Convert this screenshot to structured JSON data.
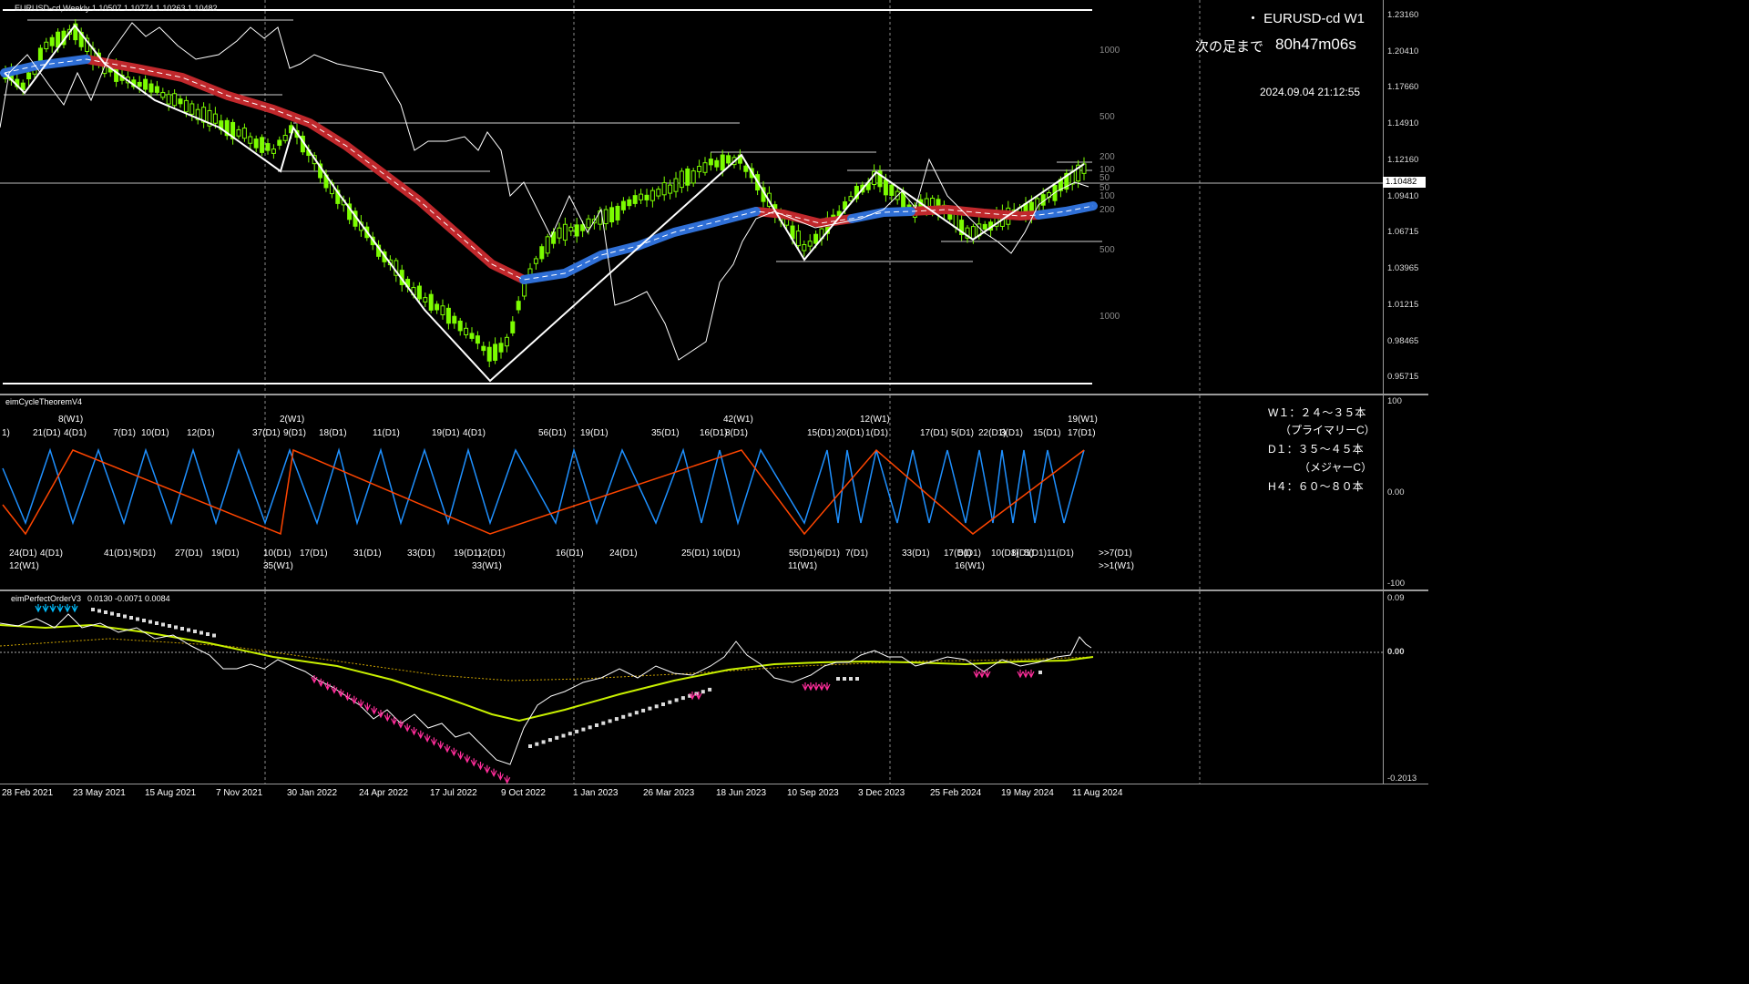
{
  "chart_header": {
    "symbol_line": "EURUSD-cd,Weekly  1.10507 1.10774 1.10263 1.10482"
  },
  "info_panel": {
    "symbol": "・ EURUSD-cd W1",
    "countdown_label": "次の足まで",
    "countdown_value": "80h47m06s",
    "datetime": "2024.09.04 21:12:55"
  },
  "price_axis": {
    "ticks": [
      "1.23160",
      "1.20410",
      "1.17660",
      "1.14910",
      "1.12160",
      "1.09410",
      "1.06715",
      "1.03965",
      "1.01215",
      "0.98465",
      "0.95715"
    ],
    "current_price": "1.10482"
  },
  "pip_ladder": [
    "1000",
    "500",
    "200",
    "100",
    "50",
    "50",
    "100",
    "200",
    "500",
    "1000"
  ],
  "cycle_pane": {
    "title": "eimCycleTheoremV4",
    "axis_ticks": [
      "100",
      "0.00",
      "-100"
    ],
    "legend": [
      "W１：２４～３５本",
      "（プライマリーC）",
      "D１：３５～４５本",
      "（メジャーC）",
      "H４：６０～８０本"
    ],
    "top_labels": [
      "1)",
      "21(D1)",
      "8(W1)",
      "4(D1)",
      "7(D1)",
      "10(D1)",
      "12(D1)",
      "37(D1)",
      "2(W1)",
      "9(D1)",
      "18(D1)",
      "11(D1)",
      "19(D1)",
      "4(D1)",
      "56(D1)",
      "19(D1)",
      "35(D1)",
      "16(D1)",
      "42(W1)",
      "8(D1)",
      "15(D1)",
      "20(D1)",
      "12(W1)",
      "1(D1)",
      "17(D1)",
      "5(D1)",
      "22(D1)",
      "3(D1)",
      "15(D1)",
      "19(W1)",
      "17(D1)"
    ],
    "bottom_labels": [
      "24(D1)",
      "4(D1)",
      "12(W1)",
      "41(D1)",
      "5(D1)",
      "27(D1)",
      "19(D1)",
      "10(D1)",
      "35(W1)",
      "17(D1)",
      "31(D1)",
      "33(D1)",
      "19(D1)",
      "12(D1)",
      "33(W1)",
      "16(D1)",
      "24(D1)",
      "25(D1)",
      "10(D1)",
      "55(D1)",
      "11(W1)",
      "6(D1)",
      "7(D1)",
      "33(D1)",
      "17(D1)",
      "5(D1)",
      "16(W1)",
      "10(D1)",
      "8(D1)",
      "5(D1)",
      "11(D1)",
      ">>7(D1)",
      ">>1(W1)"
    ]
  },
  "perfect_order_pane": {
    "title": "eimPerfectOrderV3",
    "values": "0.0130 -0.0071 0.0084",
    "axis_ticks": [
      "0.09",
      "0.00",
      "-0.2013"
    ]
  },
  "date_axis": [
    "28 Feb 2021",
    "23 May 2021",
    "15 Aug 2021",
    "7 Nov 2021",
    "30 Jan 2022",
    "24 Apr 2022",
    "17 Jul 2022",
    "9 Oct 2022",
    "1 Jan 2023",
    "26 Mar 2023",
    "18 Jun 2023",
    "10 Sep 2023",
    "3 Dec 2023",
    "25 Feb 2024",
    "19 May 2024",
    "11 Aug 2024"
  ],
  "colors": {
    "bull_candle": "#7CFC00",
    "ma_down": "#c0282c",
    "ma_up": "#2f6fd6",
    "zigzag": "#ffffff",
    "cycle_primary": "#ff4500",
    "cycle_major": "#1e90ff",
    "signal_pink": "#ff2d9b",
    "signal_cyan": "#00bfff",
    "ema_yellow": "#c8f000"
  }
}
